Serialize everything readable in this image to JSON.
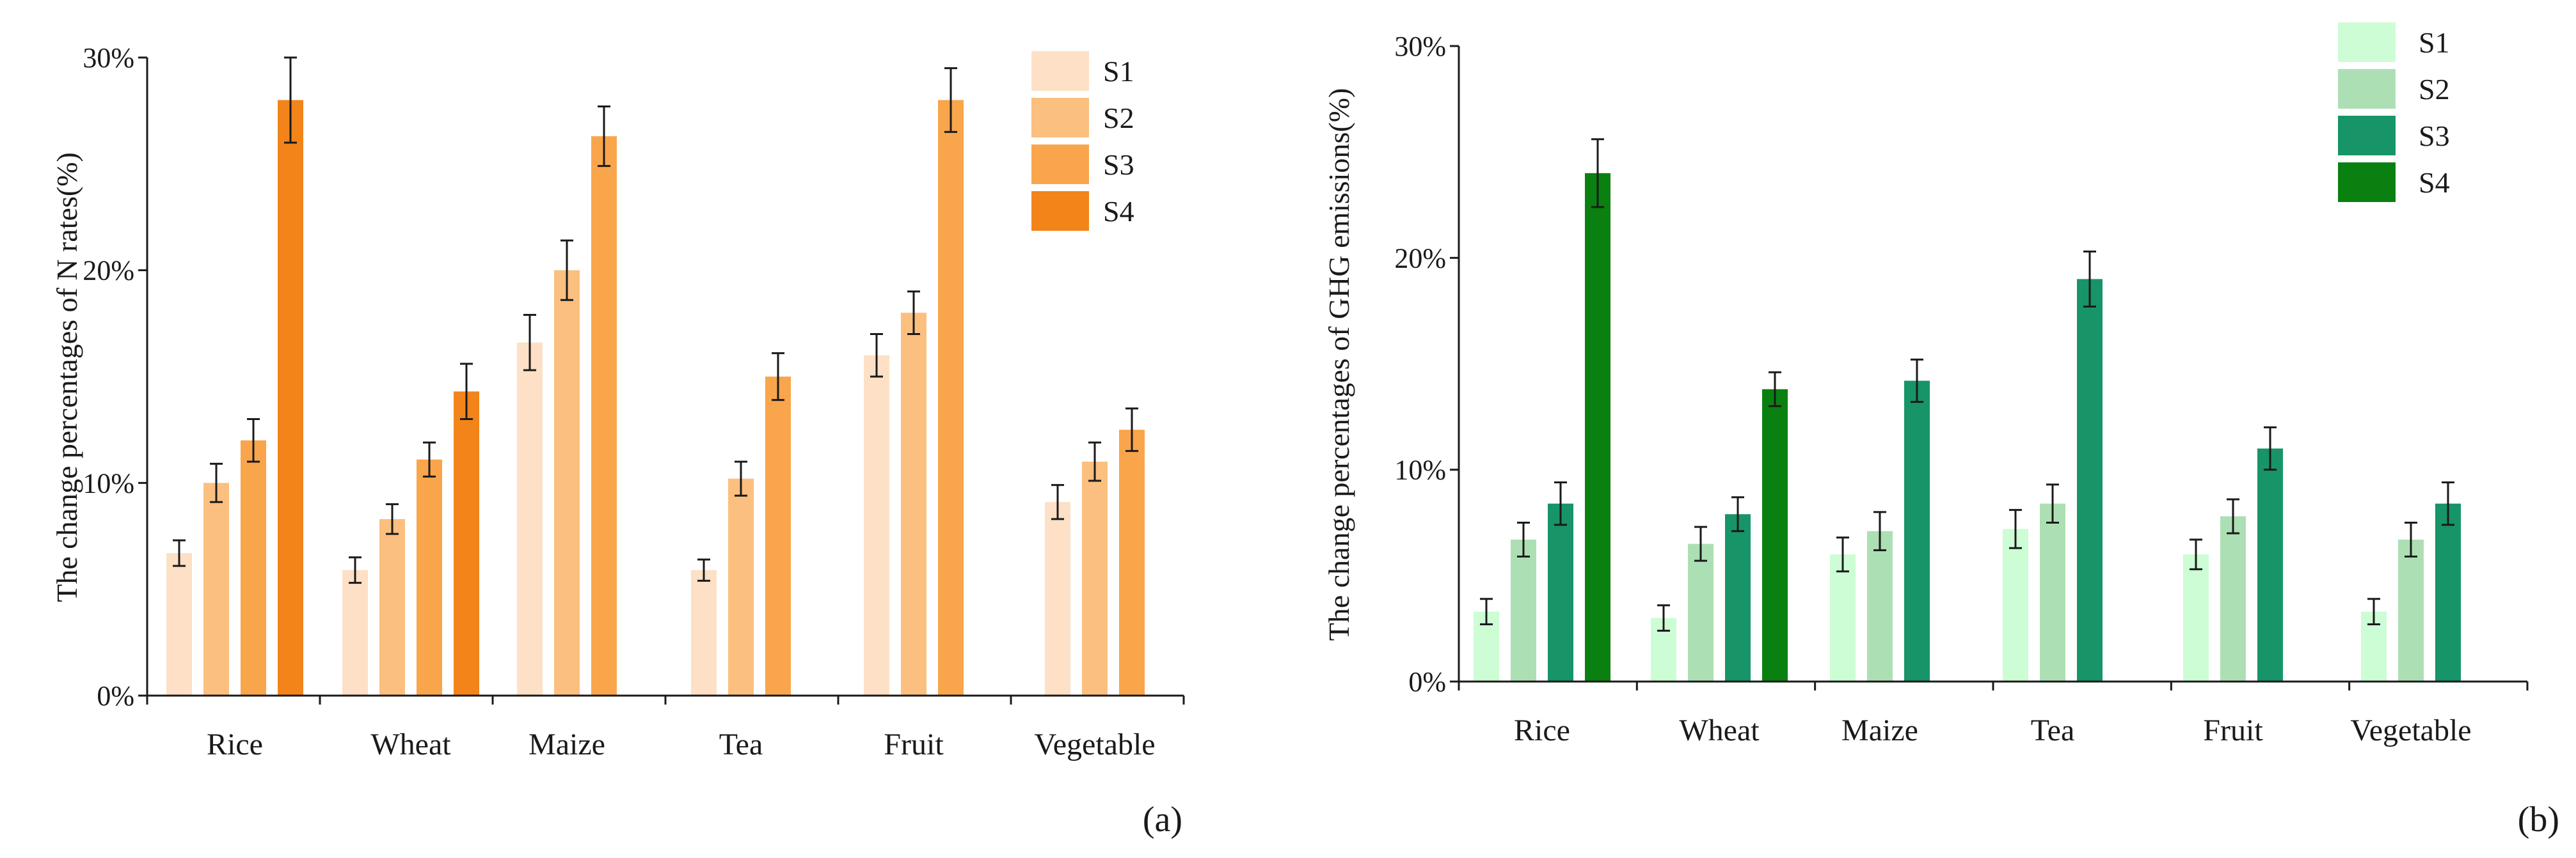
{
  "chart_data": [
    {
      "type": "bar",
      "panel_label": "(a)",
      "ylabel": "The change percentages of N rates(%)",
      "ylim": [
        0,
        30
      ],
      "yticks": [
        "0%",
        "10%",
        "20%",
        "30%"
      ],
      "categories": [
        "Rice",
        "Wheat",
        "Maize",
        "Tea",
        "Fruit",
        "Vegetable"
      ],
      "legend_position": "top-right",
      "series": [
        {
          "name": "S1",
          "color": "#fde0c5",
          "values": [
            6.7,
            5.9,
            16.6,
            5.9,
            16.0,
            9.1
          ],
          "errors": [
            0.6,
            0.6,
            1.3,
            0.5,
            1.0,
            0.8
          ]
        },
        {
          "name": "S2",
          "color": "#fbbf7f",
          "values": [
            10.0,
            8.3,
            20.0,
            10.2,
            18.0,
            11.0
          ],
          "errors": [
            0.9,
            0.7,
            1.4,
            0.8,
            1.0,
            0.9
          ]
        },
        {
          "name": "S3",
          "color": "#f9a54b",
          "values": [
            12.0,
            11.1,
            26.3,
            15.0,
            28.0,
            12.5
          ],
          "errors": [
            1.0,
            0.8,
            1.4,
            1.1,
            1.5,
            1.0
          ]
        },
        {
          "name": "S4",
          "color": "#f28419",
          "values": [
            28.0,
            14.3,
            null,
            null,
            null,
            null
          ],
          "errors": [
            2.0,
            1.3,
            null,
            null,
            null,
            null
          ]
        }
      ]
    },
    {
      "type": "bar",
      "panel_label": "(b)",
      "ylabel": "The change percentages of GHG emissions(%)",
      "ylim": [
        0,
        30
      ],
      "yticks": [
        "0%",
        "10%",
        "20%",
        "30%"
      ],
      "categories": [
        "Rice",
        "Wheat",
        "Maize",
        "Tea",
        "Fruit",
        "Vegetable"
      ],
      "legend_position": "top-right",
      "series": [
        {
          "name": "S1",
          "color": "#ccfdd4",
          "values": [
            3.3,
            3.0,
            6.0,
            7.2,
            6.0,
            3.3
          ],
          "errors": [
            0.6,
            0.6,
            0.8,
            0.9,
            0.7,
            0.6
          ]
        },
        {
          "name": "S2",
          "color": "#addfb4",
          "values": [
            6.7,
            6.5,
            7.1,
            8.4,
            7.8,
            6.7
          ],
          "errors": [
            0.8,
            0.8,
            0.9,
            0.9,
            0.8,
            0.8
          ]
        },
        {
          "name": "S3",
          "color": "#179468",
          "values": [
            8.4,
            7.9,
            14.2,
            19.0,
            11.0,
            8.4
          ],
          "errors": [
            1.0,
            0.8,
            1.0,
            1.3,
            1.0,
            1.0
          ]
        },
        {
          "name": "S4",
          "color": "#0a8010",
          "values": [
            24.0,
            13.8,
            null,
            null,
            null,
            null
          ],
          "errors": [
            1.6,
            0.8,
            null,
            null,
            null,
            null
          ]
        }
      ]
    }
  ]
}
